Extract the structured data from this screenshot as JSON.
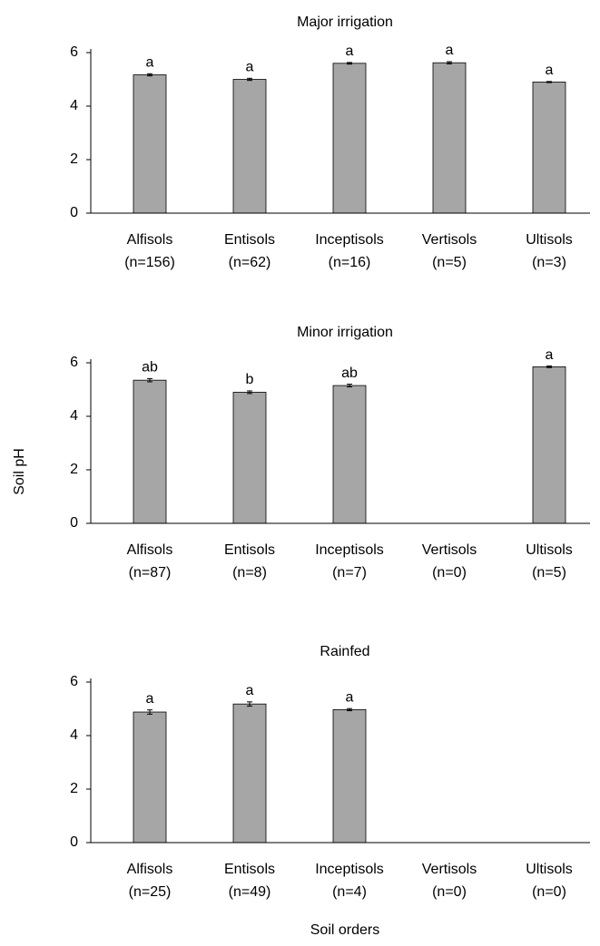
{
  "ylabel": "Soil pH",
  "xlabel": "Soil orders",
  "chart_data": [
    {
      "type": "bar",
      "title": "Major irrigation",
      "color": "#a6a6a6",
      "categories": [
        "Alfisols",
        "Entisols",
        "Inceptisols",
        "Vertisols",
        "Ultisols"
      ],
      "category_notes": [
        "(n=156)",
        "(n=62)",
        "(n=16)",
        "(n=5)",
        "(n=3)"
      ],
      "values": [
        5.17,
        5.0,
        5.6,
        5.62,
        4.9
      ],
      "errors": [
        0.04,
        0.04,
        0.03,
        0.04,
        0.02
      ],
      "letters": [
        "a",
        "a",
        "a",
        "a",
        "a"
      ],
      "ylim": [
        0,
        6
      ],
      "yticks": [
        0,
        2,
        4,
        6
      ]
    },
    {
      "type": "bar",
      "title": "Minor irrigation",
      "color": "#a6a6a6",
      "categories": [
        "Alfisols",
        "Entisols",
        "Inceptisols",
        "Vertisols",
        "Ultisols"
      ],
      "category_notes": [
        "(n=87)",
        "(n=8)",
        "(n=7)",
        "(n=0)",
        "(n=5)"
      ],
      "values": [
        5.35,
        4.9,
        5.15,
        null,
        5.85
      ],
      "errors": [
        0.06,
        0.05,
        0.05,
        null,
        0.03
      ],
      "letters": [
        "ab",
        "b",
        "ab",
        null,
        "a"
      ],
      "ylim": [
        0,
        6
      ],
      "yticks": [
        0,
        2,
        4,
        6
      ]
    },
    {
      "type": "bar",
      "title": "Rainfed",
      "color": "#a6a6a6",
      "categories": [
        "Alfisols",
        "Entisols",
        "Inceptisols",
        "Vertisols",
        "Ultisols"
      ],
      "category_notes": [
        "(n=25)",
        "(n=49)",
        "(n=4)",
        "(n=0)",
        "(n=0)"
      ],
      "values": [
        4.88,
        5.18,
        4.97,
        null,
        null
      ],
      "errors": [
        0.08,
        0.08,
        0.04,
        null,
        null
      ],
      "letters": [
        "a",
        "a",
        "a",
        null,
        null
      ],
      "ylim": [
        0,
        6
      ],
      "yticks": [
        0,
        2,
        4,
        6
      ]
    }
  ]
}
